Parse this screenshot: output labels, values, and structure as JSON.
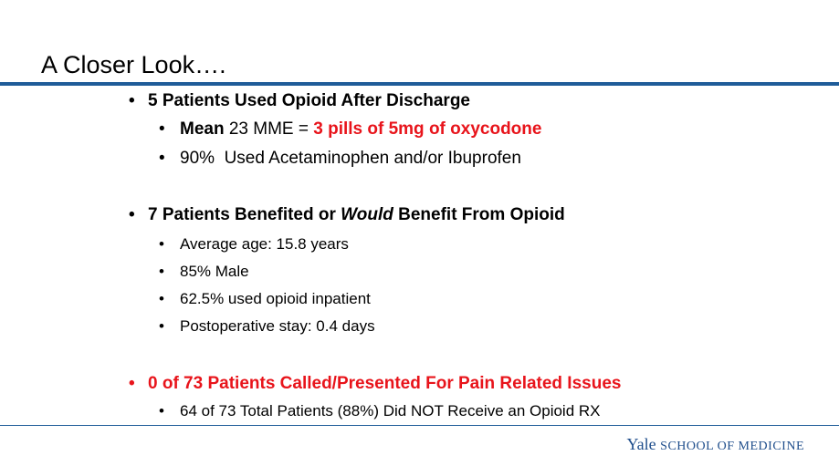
{
  "slide": {
    "title": "A Closer Look….",
    "rule_color": "#1f5c99",
    "accent_red": "#e8141b"
  },
  "bullets": {
    "b1": {
      "text": "5 Patients Used Opioid After Discharge"
    },
    "b1a": {
      "lead_bold": "Mean",
      "mid": " 23 MME = ",
      "highlight": "3 pills of 5mg of oxycodone"
    },
    "b1b": {
      "text": "90%  Used Acetaminophen and/or Ibuprofen"
    },
    "b2": {
      "part1": "7 Patients Benefited or ",
      "italic": "Would",
      "part2": " Benefit From Opioid"
    },
    "b2a": {
      "text": "Average age: 15.8 years"
    },
    "b2b": {
      "text": "85% Male"
    },
    "b2c": {
      "text": "62.5% used opioid inpatient"
    },
    "b2d": {
      "text": "Postoperative stay: 0.4 days"
    },
    "b3": {
      "text": "0 of 73 Patients Called/Presented For Pain Related Issues"
    },
    "b3a": {
      "text": "64 of 73 Total Patients (88%) Did NOT Receive an Opioid RX"
    }
  },
  "footer": {
    "logo_word": "Yale",
    "logo_rest": "SCHOOL OF MEDICINE",
    "logo_color": "#1f4e8c",
    "rule_color": "#1f5c99"
  }
}
